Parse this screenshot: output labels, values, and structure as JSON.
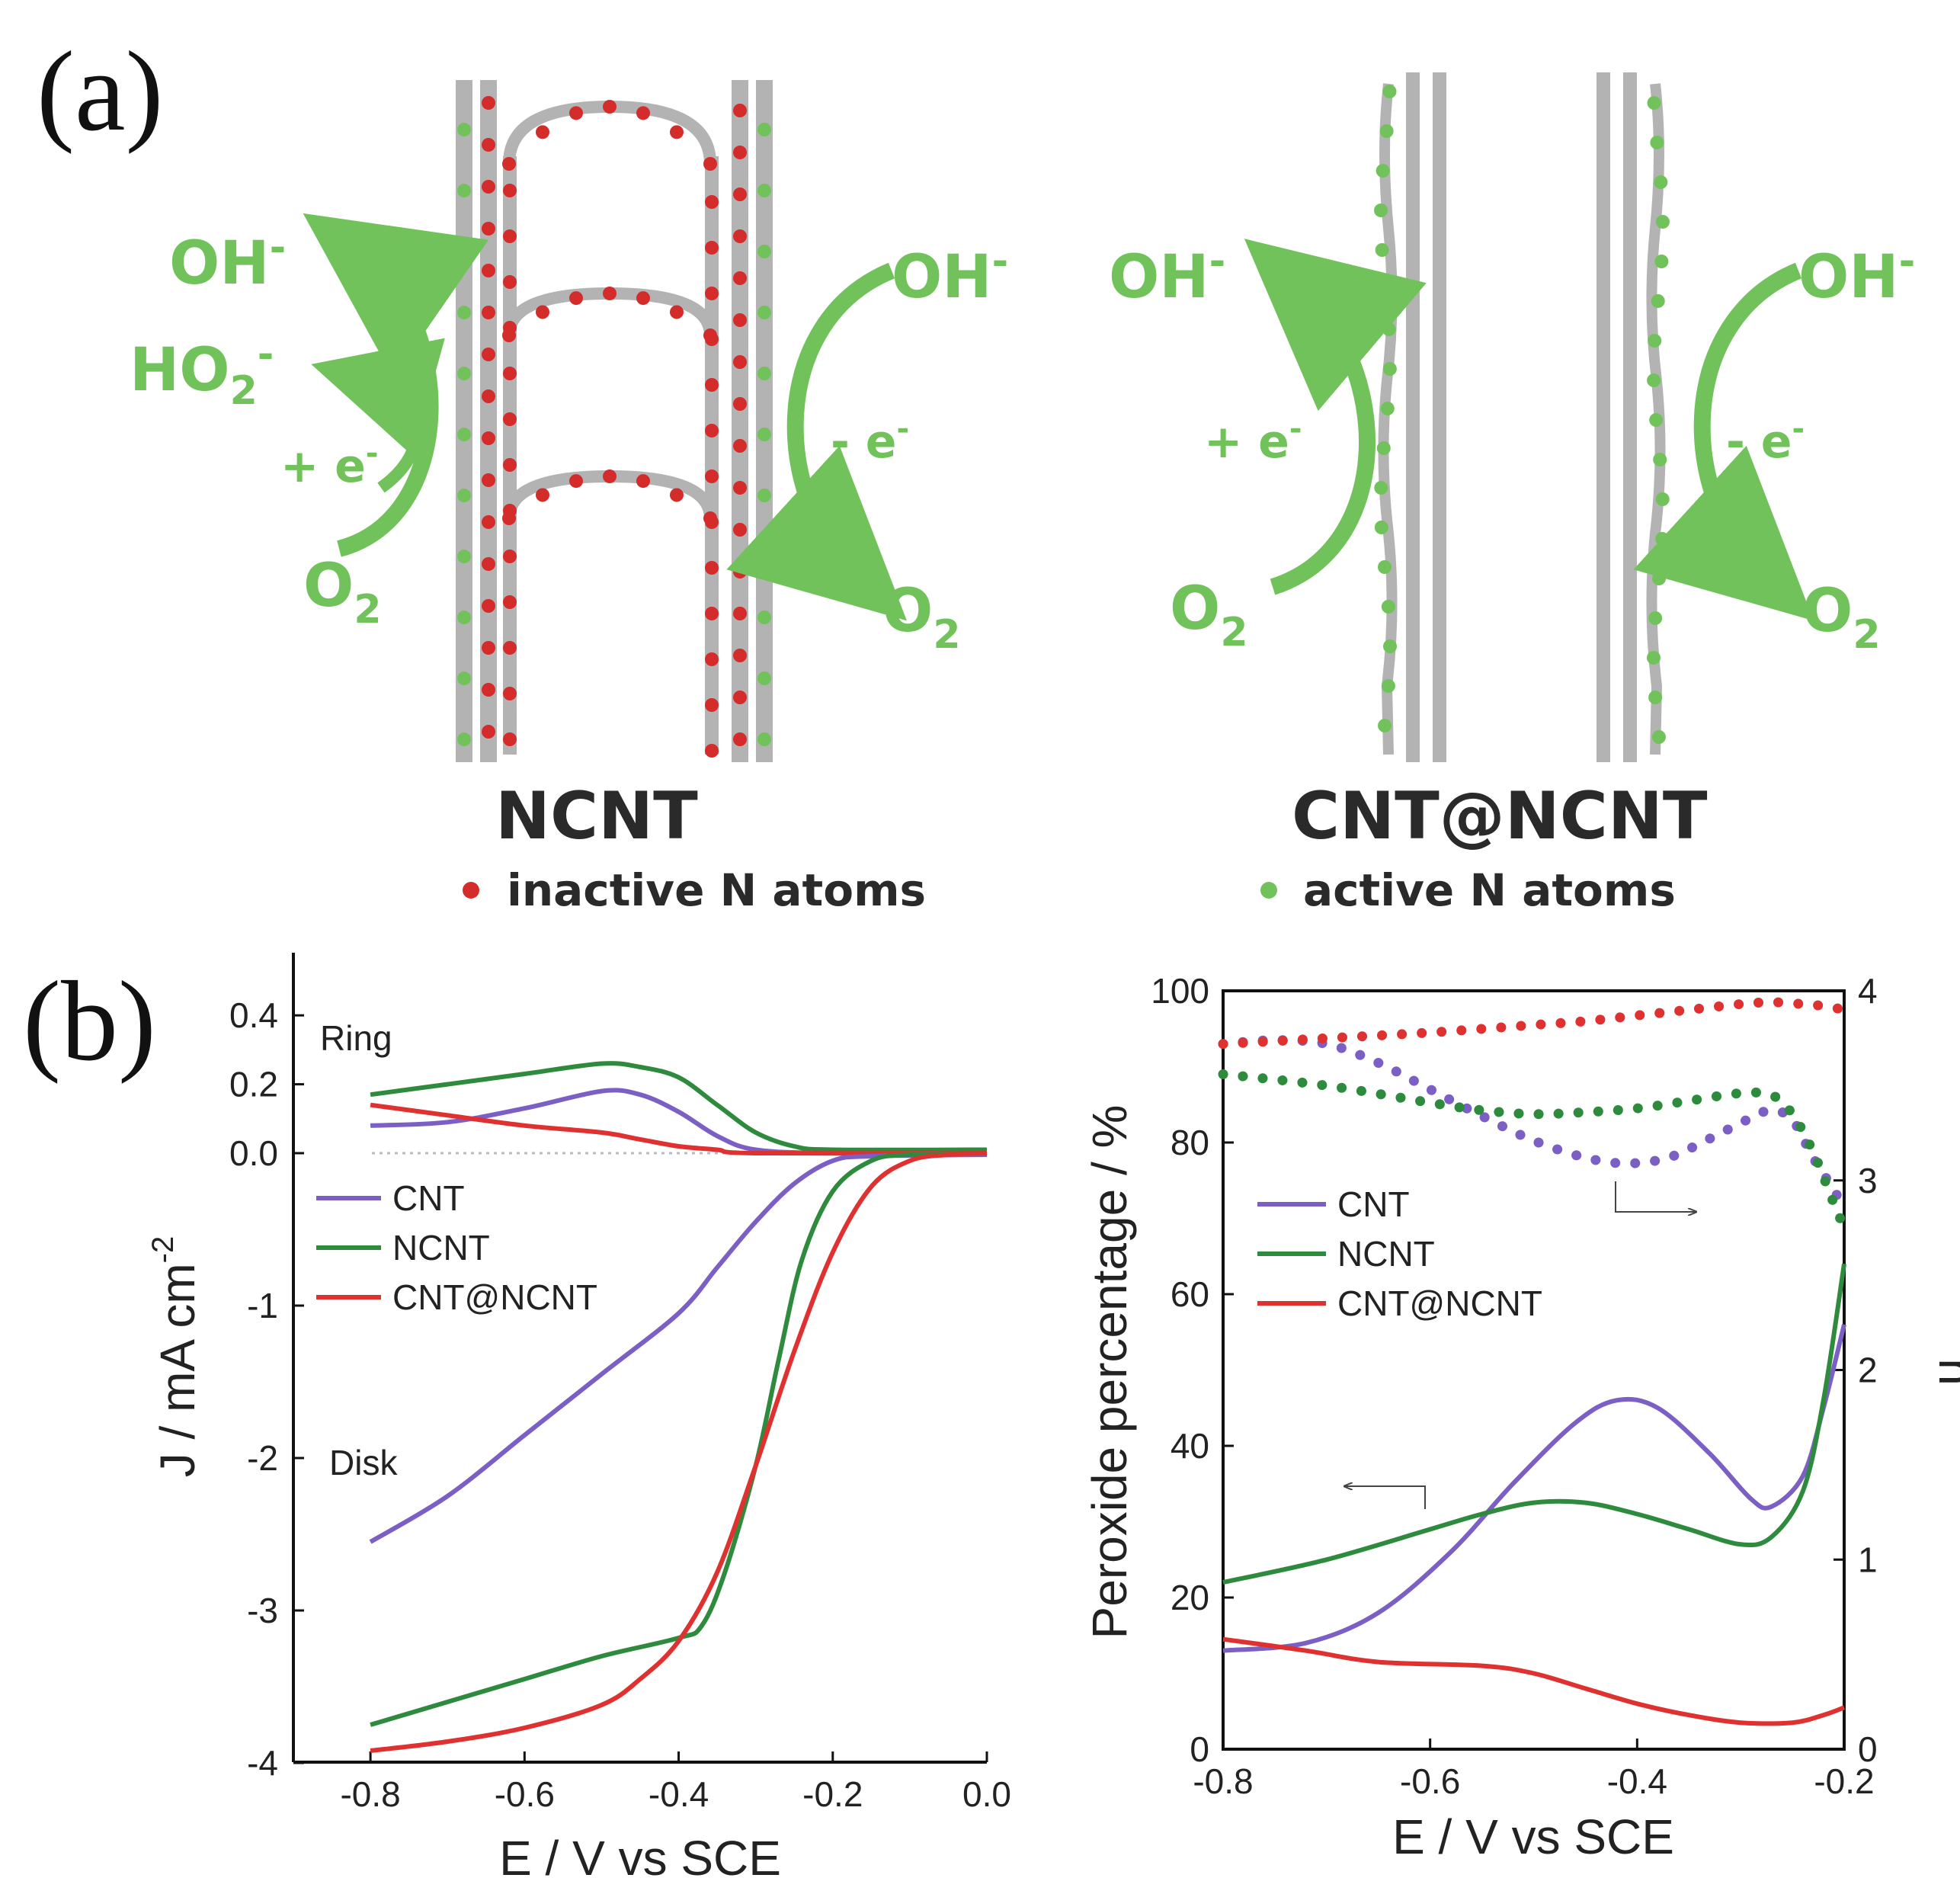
{
  "panel_labels": {
    "a": "(a)",
    "b": "(b)"
  },
  "schematic": {
    "left": {
      "title": "NCNT",
      "legend": "inactive N atoms",
      "left_products": [
        "OH",
        "HO",
        "+ e",
        "O"
      ],
      "right_products": [
        "OH",
        "- e",
        "O"
      ]
    },
    "right": {
      "title": "CNT@NCNT",
      "legend": "active N atoms"
    },
    "colors": {
      "green": "#72c25c",
      "red": "#d42b2b",
      "gray": "#b3b3b3"
    }
  },
  "chart_data": [
    {
      "type": "line",
      "title": "",
      "xlabel": "E / V vs SCE",
      "ylabel": "J / mA cm",
      "ylabel_sup": "-2",
      "xlim": [
        -0.9,
        0.0
      ],
      "ylim": [
        -4.0,
        0.6
      ],
      "xticks": [
        "-0.8",
        "-0.6",
        "-0.4",
        "-0.2",
        "0.0"
      ],
      "yticks": [
        "0.4",
        "0.2",
        "0.0",
        "-1",
        "-2",
        "-3",
        "-4"
      ],
      "annotations": {
        "ring": "Ring",
        "disk": "Disk"
      },
      "legend": [
        "CNT",
        "NCNT",
        "CNT@NCNT"
      ],
      "series": [
        {
          "name": "CNT",
          "color": "#7b5fc4",
          "part": "ring",
          "points": [
            [
              -0.8,
              0.08
            ],
            [
              -0.7,
              0.09
            ],
            [
              -0.6,
              0.13
            ],
            [
              -0.5,
              0.18
            ],
            [
              -0.45,
              0.17
            ],
            [
              -0.4,
              0.12
            ],
            [
              -0.35,
              0.05
            ],
            [
              -0.3,
              0.01
            ],
            [
              -0.2,
              0.0
            ],
            [
              0.0,
              0.0
            ]
          ]
        },
        {
          "name": "NCNT",
          "color": "#2e8b3e",
          "part": "ring",
          "points": [
            [
              -0.8,
              0.17
            ],
            [
              -0.7,
              0.2
            ],
            [
              -0.6,
              0.23
            ],
            [
              -0.5,
              0.26
            ],
            [
              -0.45,
              0.25
            ],
            [
              -0.4,
              0.22
            ],
            [
              -0.35,
              0.14
            ],
            [
              -0.3,
              0.06
            ],
            [
              -0.25,
              0.02
            ],
            [
              -0.2,
              0.01
            ],
            [
              0.0,
              0.01
            ]
          ]
        },
        {
          "name": "CNT@NCNT",
          "color": "#e03131",
          "part": "ring",
          "points": [
            [
              -0.8,
              0.14
            ],
            [
              -0.7,
              0.11
            ],
            [
              -0.6,
              0.08
            ],
            [
              -0.5,
              0.06
            ],
            [
              -0.45,
              0.04
            ],
            [
              -0.4,
              0.02
            ],
            [
              -0.35,
              0.01
            ],
            [
              -0.3,
              0.0
            ],
            [
              0.0,
              0.0
            ]
          ]
        },
        {
          "name": "CNT",
          "color": "#7b5fc4",
          "part": "disk",
          "points": [
            [
              -0.8,
              -2.55
            ],
            [
              -0.7,
              -2.25
            ],
            [
              -0.6,
              -1.85
            ],
            [
              -0.5,
              -1.45
            ],
            [
              -0.4,
              -1.05
            ],
            [
              -0.35,
              -0.75
            ],
            [
              -0.3,
              -0.45
            ],
            [
              -0.25,
              -0.2
            ],
            [
              -0.2,
              -0.05
            ],
            [
              -0.15,
              -0.02
            ],
            [
              0.0,
              -0.01
            ]
          ]
        },
        {
          "name": "NCNT",
          "color": "#2e8b3e",
          "part": "disk",
          "points": [
            [
              -0.8,
              -3.75
            ],
            [
              -0.7,
              -3.6
            ],
            [
              -0.6,
              -3.45
            ],
            [
              -0.5,
              -3.3
            ],
            [
              -0.4,
              -3.18
            ],
            [
              -0.37,
              -3.1
            ],
            [
              -0.34,
              -2.75
            ],
            [
              -0.3,
              -2.05
            ],
            [
              -0.27,
              -1.35
            ],
            [
              -0.24,
              -0.7
            ],
            [
              -0.2,
              -0.25
            ],
            [
              -0.15,
              -0.05
            ],
            [
              -0.1,
              -0.01
            ],
            [
              0.0,
              0.0
            ]
          ]
        },
        {
          "name": "CNT@NCNT",
          "color": "#e03131",
          "part": "disk",
          "points": [
            [
              -0.8,
              -3.92
            ],
            [
              -0.7,
              -3.86
            ],
            [
              -0.6,
              -3.77
            ],
            [
              -0.5,
              -3.62
            ],
            [
              -0.45,
              -3.45
            ],
            [
              -0.4,
              -3.2
            ],
            [
              -0.35,
              -2.75
            ],
            [
              -0.3,
              -2.05
            ],
            [
              -0.25,
              -1.3
            ],
            [
              -0.2,
              -0.65
            ],
            [
              -0.15,
              -0.22
            ],
            [
              -0.1,
              -0.05
            ],
            [
              -0.05,
              -0.01
            ],
            [
              0.0,
              0.0
            ]
          ]
        }
      ]
    },
    {
      "type": "line",
      "title": "",
      "xlabel": "E / V vs SCE",
      "ylabel": "Peroxide percentage / %",
      "ylabel_right": "n",
      "xlim": [
        -0.8,
        -0.2
      ],
      "ylim": [
        0,
        100
      ],
      "ylim_right": [
        0,
        4
      ],
      "xticks": [
        "-0.8",
        "-0.6",
        "-0.4",
        "-0.2"
      ],
      "yticks": [
        "0",
        "20",
        "40",
        "60",
        "80",
        "100"
      ],
      "yticks_right": [
        "0",
        "1",
        "2",
        "3",
        "4"
      ],
      "legend": [
        "CNT",
        "NCNT",
        "CNT@NCNT"
      ],
      "series": [
        {
          "name": "CNT",
          "color": "#7b5fc4",
          "axis": "left",
          "style": "solid",
          "points": [
            [
              -0.8,
              13
            ],
            [
              -0.72,
              14
            ],
            [
              -0.65,
              18
            ],
            [
              -0.58,
              26
            ],
            [
              -0.52,
              35
            ],
            [
              -0.46,
              43
            ],
            [
              -0.42,
              46
            ],
            [
              -0.38,
              45
            ],
            [
              -0.33,
              39
            ],
            [
              -0.29,
              33
            ],
            [
              -0.27,
              32
            ],
            [
              -0.24,
              36
            ],
            [
              -0.22,
              45
            ],
            [
              -0.2,
              56
            ]
          ]
        },
        {
          "name": "NCNT",
          "color": "#2e8b3e",
          "axis": "left",
          "style": "solid",
          "points": [
            [
              -0.8,
              22
            ],
            [
              -0.7,
              25
            ],
            [
              -0.6,
              29
            ],
            [
              -0.55,
              31
            ],
            [
              -0.5,
              32.5
            ],
            [
              -0.45,
              32.5
            ],
            [
              -0.4,
              31
            ],
            [
              -0.35,
              29
            ],
            [
              -0.3,
              27
            ],
            [
              -0.27,
              28
            ],
            [
              -0.24,
              34
            ],
            [
              -0.22,
              46
            ],
            [
              -0.2,
              64
            ]
          ]
        },
        {
          "name": "CNT@NCNT",
          "color": "#e03131",
          "axis": "left",
          "style": "solid",
          "points": [
            [
              -0.8,
              14.5
            ],
            [
              -0.72,
              13
            ],
            [
              -0.65,
              11.5
            ],
            [
              -0.55,
              11
            ],
            [
              -0.5,
              10
            ],
            [
              -0.45,
              8
            ],
            [
              -0.4,
              6
            ],
            [
              -0.35,
              4.5
            ],
            [
              -0.3,
              3.5
            ],
            [
              -0.25,
              3.5
            ],
            [
              -0.22,
              4.5
            ],
            [
              -0.2,
              5.5
            ]
          ]
        },
        {
          "name": "CNT",
          "color": "#7b5fc4",
          "axis": "right",
          "style": "dotted",
          "points": [
            [
              -0.8,
              3.72
            ],
            [
              -0.75,
              3.74
            ],
            [
              -0.7,
              3.72
            ],
            [
              -0.65,
              3.62
            ],
            [
              -0.6,
              3.48
            ],
            [
              -0.55,
              3.34
            ],
            [
              -0.5,
              3.21
            ],
            [
              -0.45,
              3.12
            ],
            [
              -0.41,
              3.09
            ],
            [
              -0.37,
              3.12
            ],
            [
              -0.33,
              3.22
            ],
            [
              -0.29,
              3.33
            ],
            [
              -0.27,
              3.37
            ],
            [
              -0.25,
              3.32
            ],
            [
              -0.23,
              3.12
            ],
            [
              -0.21,
              2.95
            ],
            [
              -0.2,
              2.85
            ]
          ]
        },
        {
          "name": "NCNT",
          "color": "#2e8b3e",
          "axis": "right",
          "style": "dotted",
          "points": [
            [
              -0.8,
              3.56
            ],
            [
              -0.7,
              3.5
            ],
            [
              -0.6,
              3.41
            ],
            [
              -0.55,
              3.37
            ],
            [
              -0.5,
              3.35
            ],
            [
              -0.45,
              3.36
            ],
            [
              -0.4,
              3.38
            ],
            [
              -0.35,
              3.42
            ],
            [
              -0.3,
              3.46
            ],
            [
              -0.27,
              3.45
            ],
            [
              -0.25,
              3.35
            ],
            [
              -0.23,
              3.15
            ],
            [
              -0.21,
              2.88
            ],
            [
              -0.2,
              2.75
            ]
          ]
        },
        {
          "name": "CNT@NCNT",
          "color": "#e03131",
          "axis": "right",
          "style": "dotted",
          "points": [
            [
              -0.8,
              3.72
            ],
            [
              -0.7,
              3.75
            ],
            [
              -0.6,
              3.78
            ],
            [
              -0.5,
              3.82
            ],
            [
              -0.45,
              3.84
            ],
            [
              -0.4,
              3.87
            ],
            [
              -0.35,
              3.9
            ],
            [
              -0.3,
              3.93
            ],
            [
              -0.27,
              3.94
            ],
            [
              -0.24,
              3.93
            ],
            [
              -0.22,
              3.92
            ],
            [
              -0.2,
              3.9
            ]
          ]
        }
      ],
      "arrows": [
        {
          "direction": "left",
          "axis": "left"
        },
        {
          "direction": "right",
          "axis": "right"
        }
      ]
    }
  ]
}
